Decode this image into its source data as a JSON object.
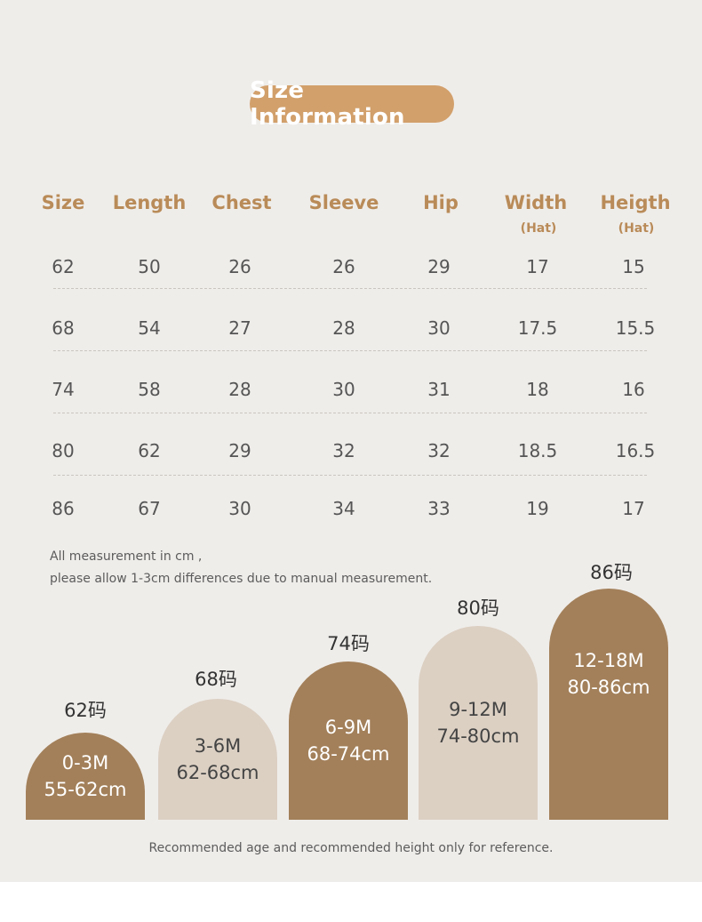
{
  "title": "Size Information",
  "columns": [
    {
      "label": "Size",
      "sub": ""
    },
    {
      "label": "Length",
      "sub": ""
    },
    {
      "label": "Chest",
      "sub": ""
    },
    {
      "label": "Sleeve",
      "sub": ""
    },
    {
      "label": "Hip",
      "sub": ""
    },
    {
      "label": "Width",
      "sub": "(Hat)"
    },
    {
      "label": "Heigth",
      "sub": "(Hat)"
    }
  ],
  "rows": [
    [
      "62",
      "50",
      "26",
      "26",
      "29",
      "17",
      "15"
    ],
    [
      "68",
      "54",
      "27",
      "28",
      "30",
      "17.5",
      "15.5"
    ],
    [
      "74",
      "58",
      "28",
      "30",
      "31",
      "18",
      "16"
    ],
    [
      "80",
      "62",
      "29",
      "32",
      "32",
      "18.5",
      "16.5"
    ],
    [
      "86",
      "67",
      "30",
      "34",
      "33",
      "19",
      "17"
    ]
  ],
  "note": {
    "line1": "All measurement in cm ,",
    "line2": "please allow 1-3cm differences due to manual measurement."
  },
  "age_chart": [
    {
      "size": "62码",
      "age": "0-3M",
      "height": "55-62cm",
      "color": "#a3805a"
    },
    {
      "size": "68码",
      "age": "3-6M",
      "height": "62-68cm",
      "color": "#dcd0c3"
    },
    {
      "size": "74码",
      "age": "6-9M",
      "height": "68-74cm",
      "color": "#a3805a"
    },
    {
      "size": "80码",
      "age": "9-12M",
      "height": "74-80cm",
      "color": "#dcd0c3"
    },
    {
      "size": "86码",
      "age": "12-18M",
      "height": "80-86cm",
      "color": "#a3805a"
    }
  ],
  "footer": "Recommended age and recommended height only for reference.",
  "colors": {
    "background": "#efedea",
    "title_pill": "#d2a06b",
    "header_text": "#b98b58",
    "arch_dark": "#a3805a",
    "arch_light": "#dcd0c3"
  }
}
